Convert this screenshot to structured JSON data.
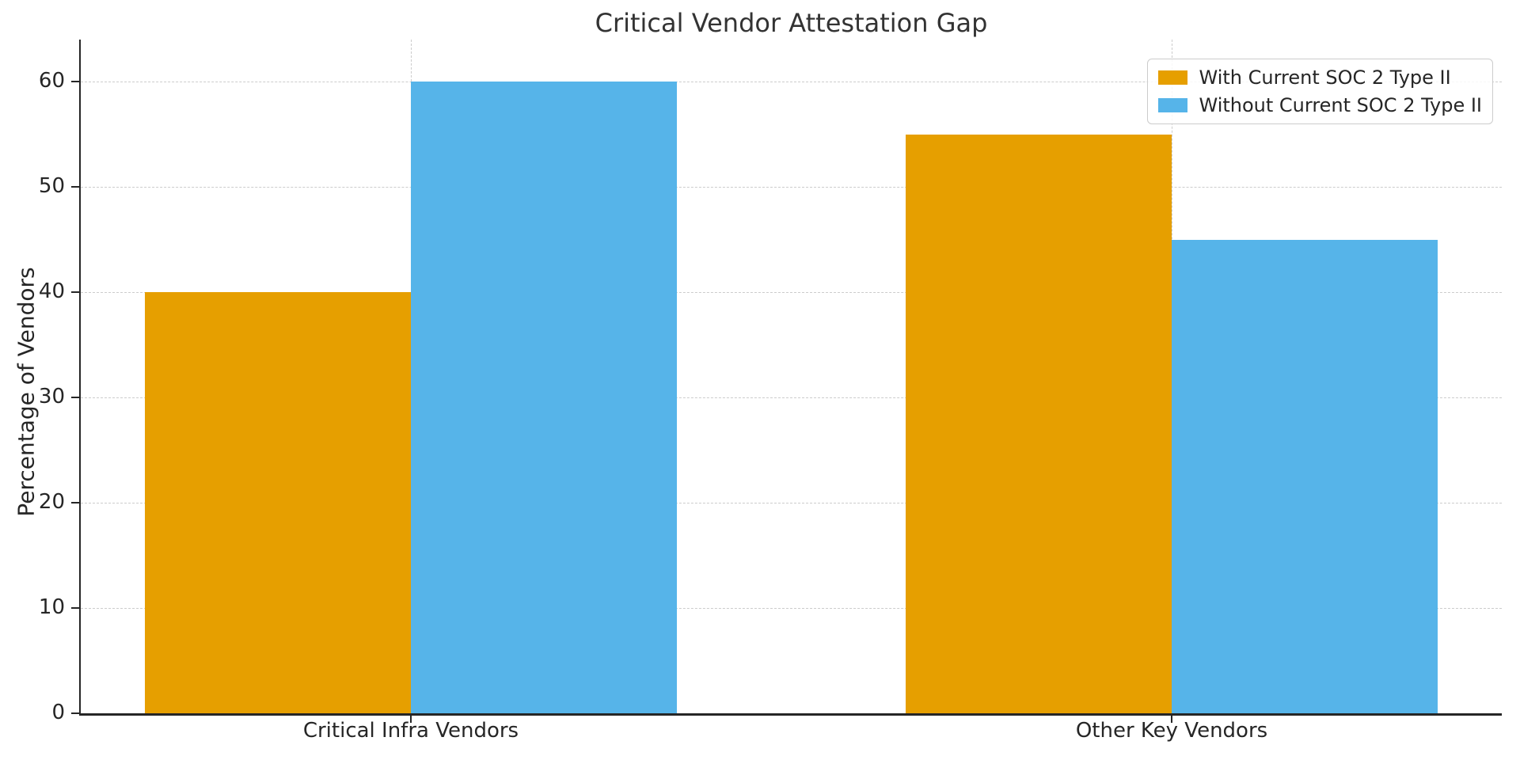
{
  "title": "Critical Vendor Attestation Gap",
  "chart_data": {
    "type": "bar",
    "title": "Critical Vendor Attestation Gap",
    "categories": [
      "Critical Infra Vendors",
      "Other Key Vendors"
    ],
    "series": [
      {
        "name": "With Current SOC 2 Type II",
        "color": "#E69F00",
        "values": [
          40,
          55
        ]
      },
      {
        "name": "Without Current SOC 2 Type II",
        "color": "#56B4E9",
        "values": [
          60,
          45
        ]
      }
    ],
    "xlabel": "",
    "ylabel": "Percentage of Vendors",
    "ylim": [
      0,
      64
    ],
    "yticks": [
      0,
      10,
      20,
      30,
      40,
      50,
      60
    ],
    "grid": true,
    "grid_style": "dashed",
    "legend_position": "upper right",
    "colors": {
      "grid": "#cccccc",
      "axis": "#262626",
      "text": "#262626",
      "title": "#333333",
      "background": "#ffffff"
    }
  }
}
